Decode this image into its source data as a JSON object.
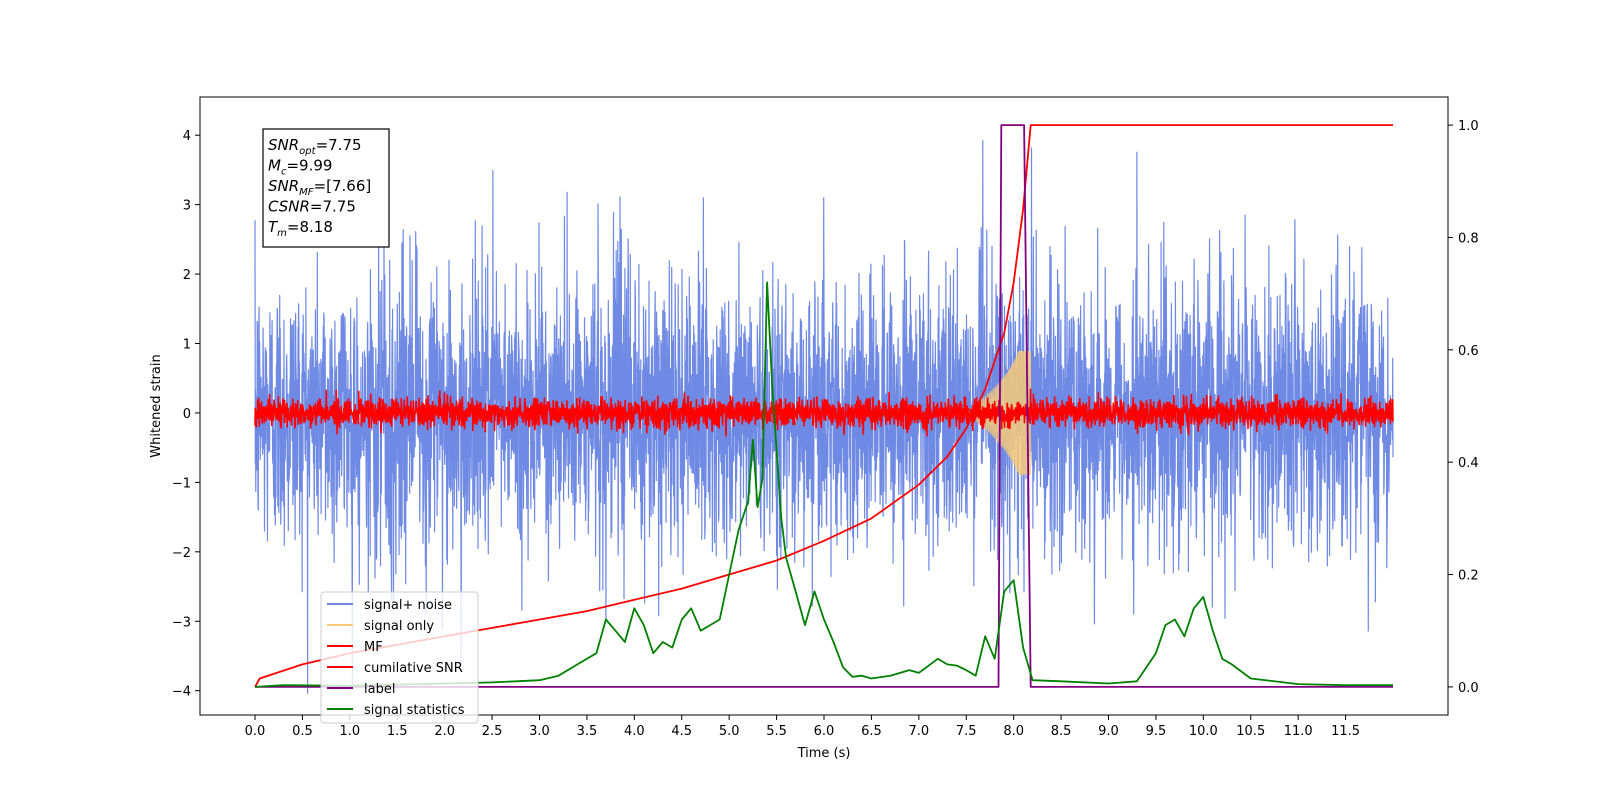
{
  "chart_data": {
    "type": "line",
    "title": "",
    "xlabel": "Time (s)",
    "ylabel": "Whitened strain",
    "xlim": [
      -0.58,
      12.58
    ],
    "ylim": [
      -4.35,
      4.55
    ],
    "y2lim": [
      -0.05,
      1.05
    ],
    "x_ticks": [
      "0.0",
      "0.5",
      "1.0",
      "1.5",
      "2.0",
      "2.5",
      "3.0",
      "3.5",
      "4.0",
      "4.5",
      "5.0",
      "5.5",
      "6.0",
      "6.5",
      "7.0",
      "7.5",
      "8.0",
      "8.5",
      "9.0",
      "9.5",
      "10.0",
      "10.5",
      "11.0",
      "11.5"
    ],
    "y_ticks": [
      "4",
      "3",
      "2",
      "1",
      "0",
      "−1",
      "−2",
      "−3",
      "−4"
    ],
    "y2_ticks": [
      "1.0",
      "0.8",
      "0.6",
      "0.4",
      "0.2",
      "0.0"
    ],
    "grid": false,
    "legend_position": "lower-left",
    "annotation": {
      "lines": [
        {
          "var": "SNR",
          "sub": "opt",
          "value": "=7.75"
        },
        {
          "var": "M",
          "sub": "c",
          "value": "=9.99"
        },
        {
          "var": "SNR",
          "sub": "MF",
          "value": "=[7.66]"
        },
        {
          "var": "CSNR",
          "sub": "",
          "value": "=7.75"
        },
        {
          "var": "T",
          "sub": "m",
          "value": "=8.18"
        }
      ]
    },
    "series": [
      {
        "name": "signal+ noise",
        "color": "#6f8ae4",
        "axis": "left",
        "kind": "noise",
        "x_range": [
          0,
          12
        ],
        "sigma": 1.0,
        "peak": 4.1
      },
      {
        "name": "signal only",
        "color": "#f7c97a",
        "axis": "left",
        "kind": "chirp",
        "x_range": [
          7.5,
          8.18
        ],
        "max_amplitude": 0.9
      },
      {
        "name": "MF",
        "color": "#ff0000",
        "axis": "left",
        "kind": "noise",
        "x_range": [
          0,
          12
        ],
        "sigma": 0.1,
        "peak": 0.45
      },
      {
        "name": "cumilative SNR",
        "color": "#ff0000",
        "axis": "right",
        "x": [
          0.0,
          0.05,
          0.5,
          1.0,
          1.5,
          2.0,
          2.5,
          3.0,
          3.5,
          4.0,
          4.5,
          5.0,
          5.5,
          6.0,
          6.5,
          7.0,
          7.3,
          7.5,
          7.7,
          7.9,
          8.0,
          8.1,
          8.18,
          9.0,
          10.0,
          11.0,
          12.0
        ],
        "y": [
          0.0,
          0.015,
          0.04,
          0.06,
          0.075,
          0.09,
          0.105,
          0.12,
          0.135,
          0.155,
          0.175,
          0.2,
          0.225,
          0.26,
          0.3,
          0.36,
          0.41,
          0.46,
          0.53,
          0.63,
          0.72,
          0.85,
          1.0,
          1.0,
          1.0,
          1.0,
          1.0
        ]
      },
      {
        "name": "label",
        "color": "#800080",
        "axis": "right",
        "x": [
          0.0,
          7.84,
          7.87,
          8.11,
          8.18,
          12.0
        ],
        "y": [
          0.0,
          0.0,
          1.0,
          1.0,
          0.0,
          0.0
        ]
      },
      {
        "name": "signal statistics",
        "color": "#008000",
        "axis": "right",
        "x": [
          0.0,
          0.3,
          1.0,
          2.0,
          2.5,
          3.0,
          3.2,
          3.4,
          3.6,
          3.7,
          3.8,
          3.9,
          4.0,
          4.1,
          4.2,
          4.3,
          4.4,
          4.5,
          4.6,
          4.7,
          4.8,
          4.9,
          5.0,
          5.1,
          5.2,
          5.25,
          5.3,
          5.35,
          5.4,
          5.45,
          5.5,
          5.55,
          5.6,
          5.7,
          5.8,
          5.9,
          6.0,
          6.1,
          6.2,
          6.3,
          6.4,
          6.5,
          6.7,
          6.9,
          7.0,
          7.2,
          7.3,
          7.4,
          7.5,
          7.6,
          7.7,
          7.8,
          7.9,
          8.0,
          8.1,
          8.2,
          8.5,
          9.0,
          9.3,
          9.5,
          9.6,
          9.7,
          9.8,
          9.9,
          10.0,
          10.1,
          10.2,
          10.3,
          10.5,
          11.0,
          11.5,
          12.0
        ],
        "y": [
          0.0,
          0.003,
          0.002,
          0.006,
          0.008,
          0.012,
          0.02,
          0.04,
          0.06,
          0.12,
          0.1,
          0.08,
          0.14,
          0.11,
          0.06,
          0.08,
          0.07,
          0.12,
          0.14,
          0.1,
          0.11,
          0.12,
          0.2,
          0.28,
          0.33,
          0.44,
          0.32,
          0.37,
          0.72,
          0.55,
          0.42,
          0.3,
          0.23,
          0.17,
          0.11,
          0.17,
          0.12,
          0.08,
          0.035,
          0.018,
          0.02,
          0.015,
          0.02,
          0.03,
          0.025,
          0.05,
          0.04,
          0.038,
          0.03,
          0.02,
          0.09,
          0.05,
          0.17,
          0.19,
          0.07,
          0.012,
          0.01,
          0.006,
          0.01,
          0.06,
          0.11,
          0.12,
          0.09,
          0.14,
          0.16,
          0.1,
          0.05,
          0.04,
          0.015,
          0.005,
          0.003,
          0.003
        ]
      }
    ]
  }
}
